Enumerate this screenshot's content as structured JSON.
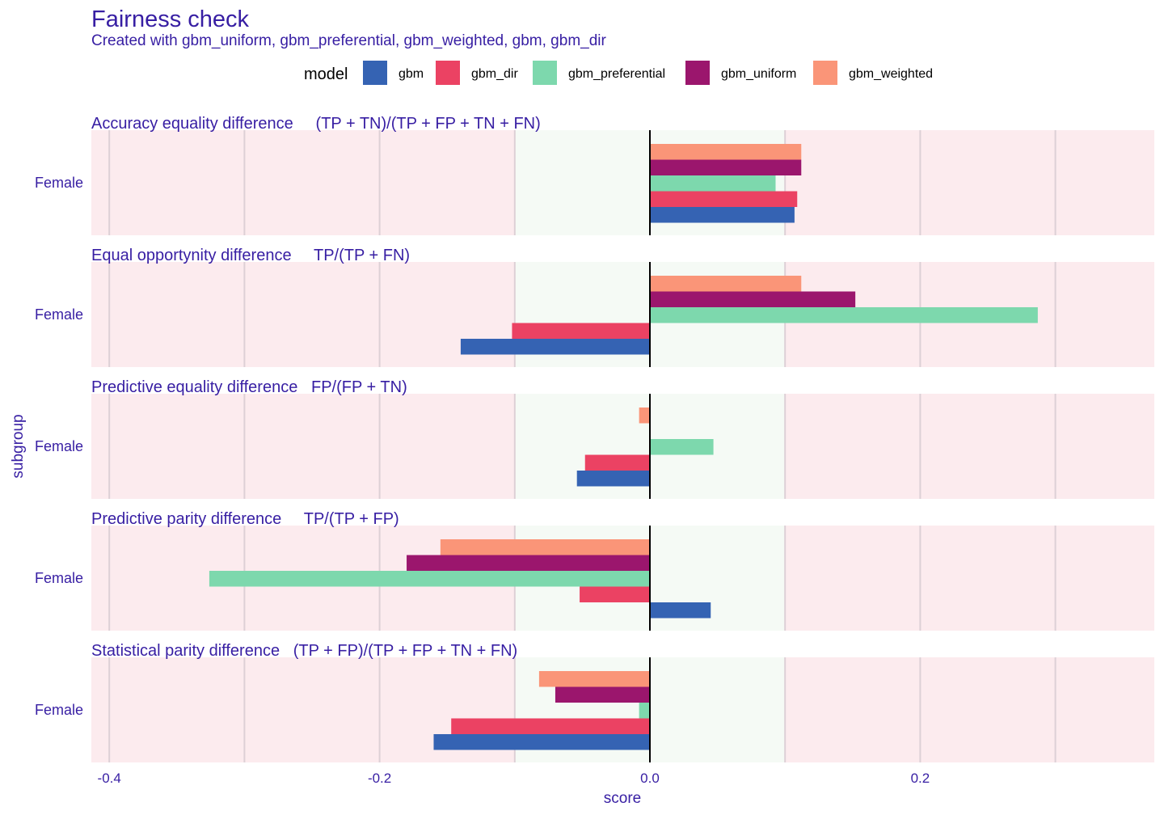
{
  "chart_data": {
    "type": "bar",
    "orientation": "horizontal",
    "title": "Fairness check",
    "subtitle": "Created with gbm_uniform, gbm_preferential, gbm_weighted, gbm, gbm_dir",
    "xlabel": "score",
    "ylabel": "subgroup",
    "xlim": [
      -0.4,
      0.37
    ],
    "x_ticks": [
      -0.4,
      -0.2,
      0.0,
      0.2
    ],
    "x_tick_labels": [
      "-0.4",
      "-0.2",
      "0.0",
      "0.2"
    ],
    "fair_band": [
      -0.1,
      0.1
    ],
    "grid": true,
    "legend": {
      "title": "model",
      "position": "top",
      "entries": [
        "gbm",
        "gbm_dir",
        "gbm_preferential",
        "gbm_uniform",
        "gbm_weighted"
      ]
    },
    "colors": {
      "gbm": "#3563b3",
      "gbm_dir": "#eb4263",
      "gbm_preferential": "#7dd8ad",
      "gbm_uniform": "#9b166d",
      "gbm_weighted": "#fa9578",
      "fair_band": "#f5faf5",
      "unfair_band": "#fcebee",
      "text": "#371ea3"
    },
    "category": "Female",
    "series_order": [
      "gbm",
      "gbm_dir",
      "gbm_preferential",
      "gbm_uniform",
      "gbm_weighted"
    ],
    "facets": [
      {
        "title": "Accuracy equality difference     (TP + TN)/(TP + FP + TN + FN)",
        "values": {
          "gbm": 0.107,
          "gbm_dir": 0.109,
          "gbm_preferential": 0.093,
          "gbm_uniform": 0.112,
          "gbm_weighted": 0.112
        }
      },
      {
        "title": "Equal opportynity difference     TP/(TP + FN)",
        "values": {
          "gbm": -0.14,
          "gbm_dir": -0.102,
          "gbm_preferential": 0.287,
          "gbm_uniform": 0.152,
          "gbm_weighted": 0.112
        }
      },
      {
        "title": "Predictive equality difference   FP/(FP + TN)",
        "values": {
          "gbm": -0.054,
          "gbm_dir": -0.048,
          "gbm_preferential": 0.047,
          "gbm_uniform": 0.0,
          "gbm_weighted": -0.008
        }
      },
      {
        "title": "Predictive parity difference     TP/(TP + FP)",
        "values": {
          "gbm": 0.045,
          "gbm_dir": -0.052,
          "gbm_preferential": -0.326,
          "gbm_uniform": -0.18,
          "gbm_weighted": -0.155
        }
      },
      {
        "title": "Statistical parity difference   (TP + FP)/(TP + FP + TN + FN)",
        "values": {
          "gbm": -0.16,
          "gbm_dir": -0.147,
          "gbm_preferential": -0.008,
          "gbm_uniform": -0.07,
          "gbm_weighted": -0.082
        }
      }
    ]
  }
}
